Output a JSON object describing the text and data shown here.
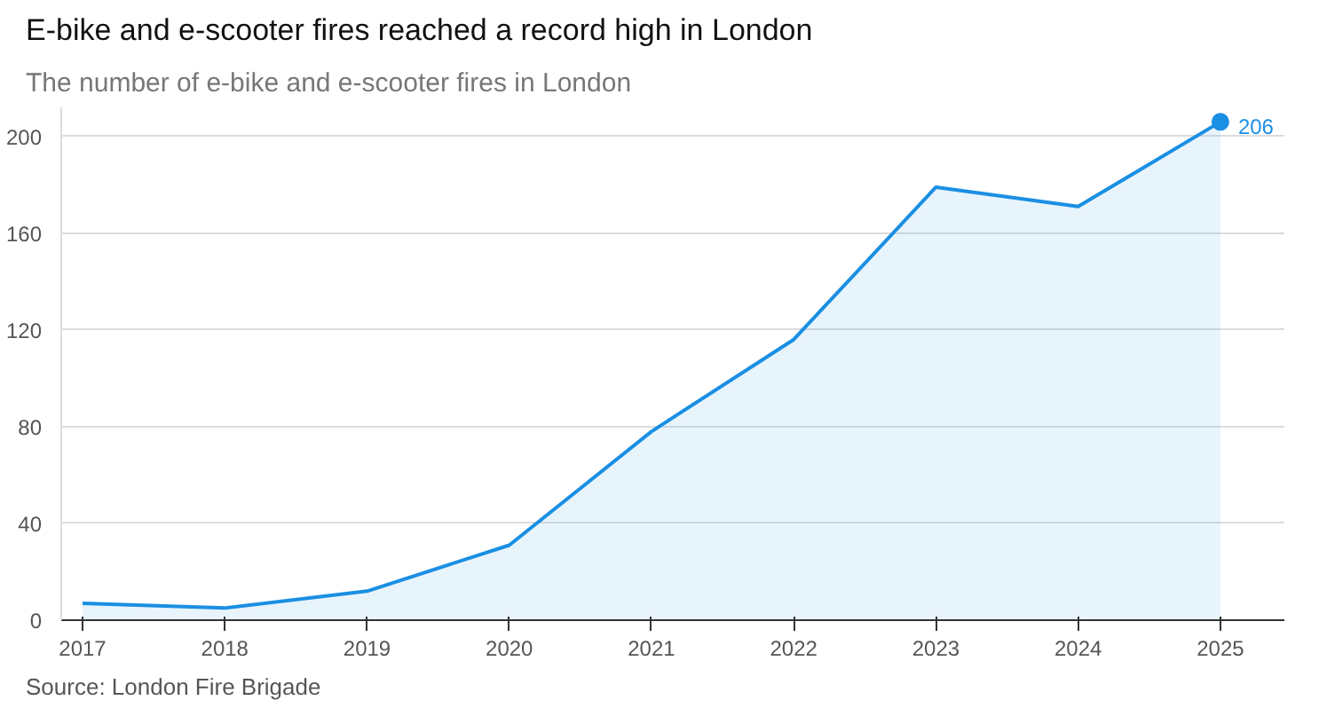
{
  "chart_data": {
    "type": "area",
    "title": "E-bike and e-scooter fires reached a record high in London",
    "subtitle": "The number of e-bike and e-scooter fires in London",
    "annotations": [
      {
        "text": "206",
        "x": 2025,
        "y": 206
      },
      "Source: London Fire Brigade"
    ],
    "x": [
      2017,
      2018,
      2019,
      2020,
      2021,
      2022,
      2023,
      2024,
      2025
    ],
    "series": [
      {
        "color": "#1a8fe3",
        "values": [
          7,
          5,
          12,
          31,
          78,
          116,
          179,
          171,
          206
        ]
      }
    ],
    "xlim": [
      2016.85,
      2025.45
    ],
    "xticks": [
      2017,
      2018,
      2019,
      2020,
      2021,
      2022,
      2023,
      2024,
      2025
    ],
    "ylim": [
      0,
      212
    ],
    "yticks": [
      0,
      40,
      80,
      120,
      160,
      200
    ],
    "grid": "y"
  }
}
